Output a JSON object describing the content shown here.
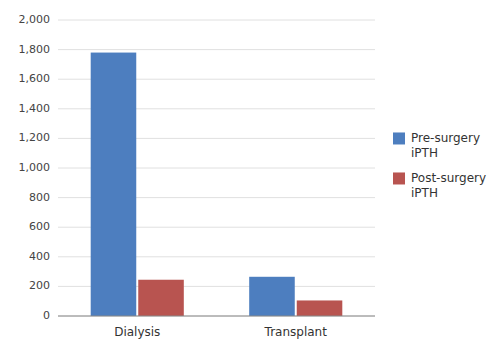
{
  "chart_data": {
    "type": "bar",
    "categories": [
      "Dialysis",
      "Transplant"
    ],
    "series": [
      {
        "name": "Pre-surgery\niPTH",
        "color": "#4d7ebf",
        "values": [
          1780,
          265
        ]
      },
      {
        "name": "Post-surgery\niPTH",
        "color": "#b85450",
        "values": [
          245,
          105
        ]
      }
    ],
    "ylim": [
      0,
      2000
    ],
    "yticks": [
      0,
      200,
      400,
      600,
      800,
      {
        "value": 1000,
        "label": "1,000"
      },
      {
        "value": 1200,
        "label": "1,200"
      },
      {
        "value": 1400,
        "label": "1,400"
      },
      {
        "value": 1600,
        "label": "1,600"
      },
      {
        "value": 1800,
        "label": "1,800"
      },
      {
        "value": 2000,
        "label": "2,000"
      }
    ],
    "grid": true,
    "legend": "right"
  }
}
